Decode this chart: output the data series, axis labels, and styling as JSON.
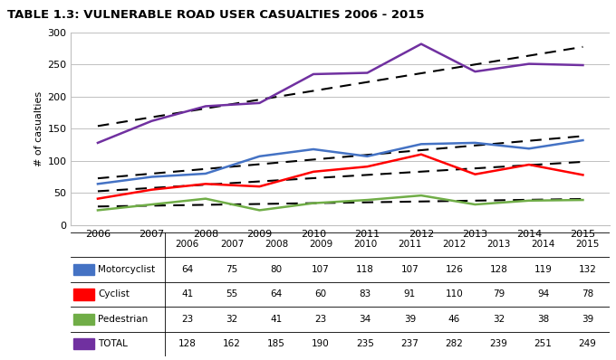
{
  "title": "TABLE 1.3: VULNERABLE ROAD USER CASUALTIES 2006 - 2015",
  "years": [
    2006,
    2007,
    2008,
    2009,
    2010,
    2011,
    2012,
    2013,
    2014,
    2015
  ],
  "motorcyclist": [
    64,
    75,
    80,
    107,
    118,
    107,
    126,
    128,
    119,
    132
  ],
  "cyclist": [
    41,
    55,
    64,
    60,
    83,
    91,
    110,
    79,
    94,
    78
  ],
  "pedestrian": [
    23,
    32,
    41,
    23,
    34,
    39,
    46,
    32,
    38,
    39
  ],
  "total": [
    128,
    162,
    185,
    190,
    235,
    237,
    282,
    239,
    251,
    249
  ],
  "motorcyclist_color": "#4472C4",
  "cyclist_color": "#FF0000",
  "pedestrian_color": "#70AD47",
  "total_color": "#7030A0",
  "ylabel": "# of casualties",
  "ylim": [
    0,
    300
  ],
  "yticks": [
    0,
    50,
    100,
    150,
    200,
    250,
    300
  ],
  "background_color": "#FFFFFF",
  "grid_color": "#C0C0C0",
  "table_row_labels": [
    "Motorcyclist",
    "Cyclist",
    "Pedestrian",
    "TOTAL"
  ],
  "table_row_colors": [
    "#4472C4",
    "#FF0000",
    "#70AD47",
    "#7030A0"
  ]
}
